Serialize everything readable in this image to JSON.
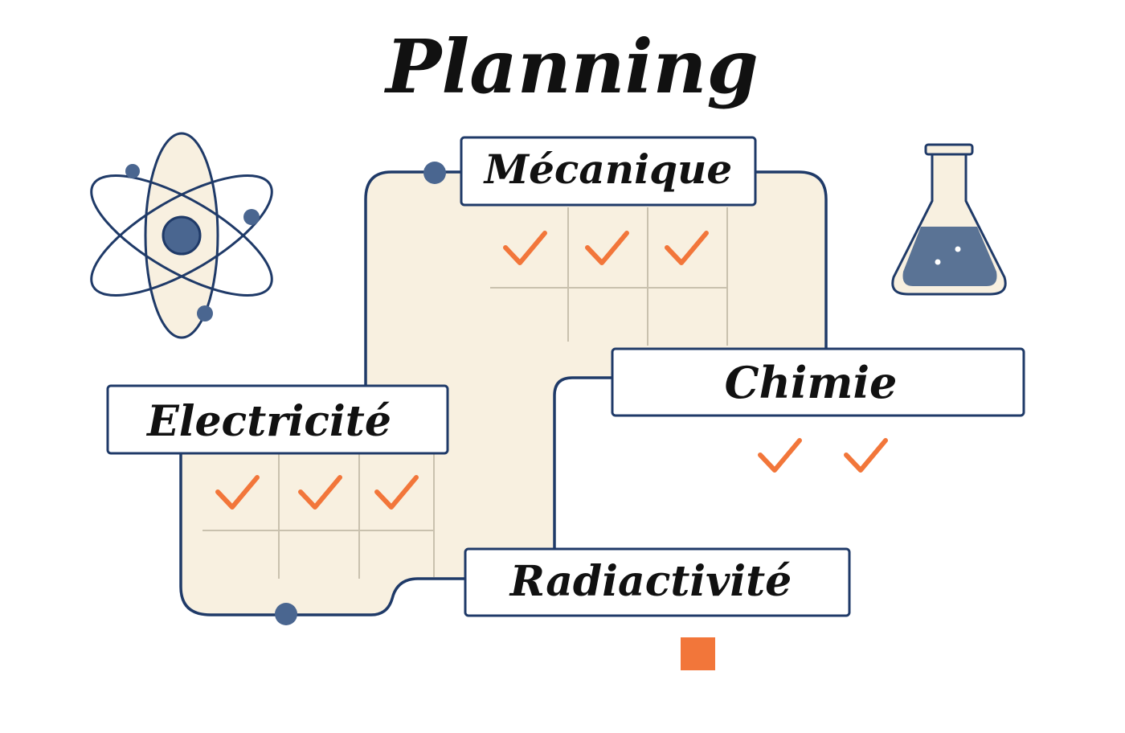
{
  "title": "Planning",
  "colors": {
    "outline": "#1f3a68",
    "panel": "#f8f0e0",
    "check": "#f2763a",
    "node": "#4a6690",
    "liquid": "#5a7395"
  },
  "icons": [
    "atom-icon",
    "flask-icon"
  ],
  "sections": [
    {
      "id": "mecanique",
      "label": "Mécanique",
      "checks": 3
    },
    {
      "id": "electricite",
      "label": "Electricité",
      "checks": 3
    },
    {
      "id": "chimie",
      "label": "Chimie",
      "checks": 2
    },
    {
      "id": "radiactivite",
      "label": "Radiactivité",
      "checks": 0,
      "status_marker": "orange-square"
    }
  ]
}
